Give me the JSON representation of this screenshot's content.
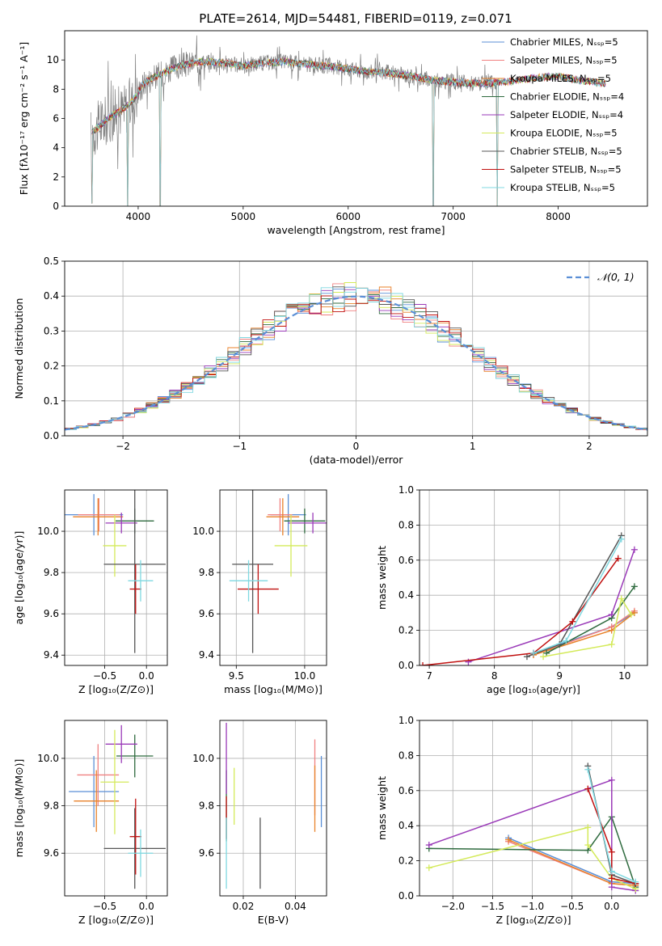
{
  "figure": {
    "title": "PLATE=2614, MJD=54481, FIBERID=0119, z=0.071",
    "colors": {
      "chabrier_miles": "#5b8fd6",
      "salpeter_miles": "#f08080",
      "kroupa_miles": "#e8822a",
      "chabrier_elodie": "#2f6b3f",
      "salpeter_elodie": "#9a3ab8",
      "kroupa_elodie": "#d4ea5a",
      "chabrier_stelib": "#555555",
      "salpeter_stelib": "#c0100f",
      "kroupa_stelib": "#7fd8e0",
      "data_spectrum": "#808080",
      "gaussian": "#5b8fd6"
    }
  },
  "chart_data": [
    {
      "id": "spectrum",
      "type": "line",
      "xlabel": "wavelength [Angstrom, rest frame]",
      "ylabel": "Flux [fλ10⁻¹⁷ erg cm⁻² s⁻¹ A⁻¹]",
      "xlim": [
        3300,
        8850
      ],
      "ylim": [
        0,
        12
      ],
      "xticks": [
        4000,
        5000,
        6000,
        7000,
        8000
      ],
      "yticks": [
        0,
        2,
        4,
        6,
        8,
        10
      ],
      "grid": false,
      "legend_position": "top-right",
      "legend": [
        "Chabrier MILES, Nₛₛₚ=5",
        "Salpeter MILES, Nₛₛₚ=5",
        "Kroupa MILES, Nₛₛₚ=5",
        "Chabrier ELODIE, Nₛₛₚ=4",
        "Salpeter ELODIE, Nₛₛₚ=4",
        "Kroupa ELODIE, Nₛₛₚ=5",
        "Chabrier STELIB, Nₛₛₚ=5",
        "Salpeter STELIB, Nₛₛₚ=5",
        "Kroupa STELIB, Nₛₛₚ=5"
      ],
      "continuum": [
        [
          3550,
          5.0
        ],
        [
          3650,
          5.6
        ],
        [
          3750,
          6.2
        ],
        [
          3850,
          6.6
        ],
        [
          3950,
          7.2
        ],
        [
          4050,
          8.4
        ],
        [
          4200,
          9.0
        ],
        [
          4400,
          9.6
        ],
        [
          4600,
          9.9
        ],
        [
          4800,
          9.8
        ],
        [
          5000,
          9.6
        ],
        [
          5200,
          9.8
        ],
        [
          5400,
          9.9
        ],
        [
          5600,
          9.7
        ],
        [
          5800,
          9.6
        ],
        [
          6000,
          9.4
        ],
        [
          6200,
          9.2
        ],
        [
          6400,
          9.1
        ],
        [
          6600,
          8.9
        ],
        [
          6800,
          8.6
        ],
        [
          7000,
          8.5
        ],
        [
          7200,
          8.4
        ],
        [
          7350,
          8.4
        ],
        [
          7500,
          8.5
        ],
        [
          7800,
          8.8
        ],
        [
          8000,
          8.9
        ],
        [
          8200,
          8.6
        ],
        [
          8450,
          8.4
        ]
      ],
      "dropouts": [
        [
          3560,
          0.2
        ],
        [
          3900,
          0.0
        ],
        [
          4210,
          0.0
        ],
        [
          6810,
          0.0
        ],
        [
          7420,
          0.0
        ]
      ]
    },
    {
      "id": "residuals",
      "type": "histogram",
      "xlabel": "(data-model)/error",
      "ylabel": "Normed distribution",
      "xlim": [
        -2.5,
        2.5
      ],
      "ylim": [
        0,
        0.5
      ],
      "xticks": [
        -2,
        -1,
        0,
        1,
        2
      ],
      "yticks": [
        0.0,
        0.1,
        0.2,
        0.3,
        0.4,
        0.5
      ],
      "grid": true,
      "legend_position": "top-right",
      "legend": [
        "𝒩(0, 1)"
      ],
      "bin_width": 0.1,
      "gaussian": {
        "mean": 0,
        "sigma": 1
      }
    },
    {
      "id": "age-vs-Z",
      "type": "scatter",
      "xlabel": "Z [log₁₀(Z/Z⊙)]",
      "ylabel": "age  [log₁₀(age/yr)]",
      "xlim": [
        -0.98,
        0.25
      ],
      "ylim": [
        9.35,
        10.2
      ],
      "xticks": [
        -0.5,
        0.0
      ],
      "xticklabels": [
        "−0.5",
        "0.0"
      ],
      "yticks": [
        9.4,
        9.6,
        9.8,
        10.0
      ],
      "grid": true,
      "points": [
        {
          "series": "chabrier_miles",
          "x": -0.63,
          "y": 10.08,
          "ex": 0.35,
          "ey": 0.1
        },
        {
          "series": "salpeter_miles",
          "x": -0.57,
          "y": 10.08,
          "ex": 0.25,
          "ey": 0.08
        },
        {
          "series": "kroupa_miles",
          "x": -0.58,
          "y": 10.07,
          "ex": 0.3,
          "ey": 0.09
        },
        {
          "series": "chabrier_elodie",
          "x": -0.14,
          "y": 10.05,
          "ex": 0.23,
          "ey": 0.06
        },
        {
          "series": "salpeter_elodie",
          "x": -0.3,
          "y": 10.04,
          "ex": 0.19,
          "ey": 0.05
        },
        {
          "series": "kroupa_elodie",
          "x": -0.38,
          "y": 9.93,
          "ex": 0.14,
          "ey": 0.15
        },
        {
          "series": "chabrier_stelib",
          "x": -0.14,
          "y": 9.84,
          "ex": 0.37,
          "ey": 0.43
        },
        {
          "series": "salpeter_stelib",
          "x": -0.13,
          "y": 9.72,
          "ex": 0.07,
          "ey": 0.12
        },
        {
          "series": "kroupa_stelib",
          "x": -0.07,
          "y": 9.76,
          "ex": 0.15,
          "ey": 0.1
        }
      ]
    },
    {
      "id": "age-vs-mass",
      "type": "scatter",
      "xlabel": "mass [log₁₀(M/M⊙)]",
      "ylabel": "",
      "xlim": [
        9.38,
        10.16
      ],
      "ylim": [
        9.35,
        10.2
      ],
      "xticks": [
        9.5,
        10.0
      ],
      "xticklabels": [
        "9.5",
        "10.0"
      ],
      "yticks": [
        9.4,
        9.6,
        9.8,
        10.0
      ],
      "grid": true,
      "points": [
        {
          "series": "chabrier_miles",
          "x": 9.88,
          "y": 10.08,
          "ex": 0.13,
          "ey": 0.1
        },
        {
          "series": "salpeter_miles",
          "x": 9.82,
          "y": 10.08,
          "ex": 0.09,
          "ey": 0.08
        },
        {
          "series": "kroupa_miles",
          "x": 9.84,
          "y": 10.07,
          "ex": 0.12,
          "ey": 0.09
        },
        {
          "series": "chabrier_elodie",
          "x": 10.0,
          "y": 10.05,
          "ex": 0.15,
          "ey": 0.06
        },
        {
          "series": "salpeter_elodie",
          "x": 10.06,
          "y": 10.04,
          "ex": 0.18,
          "ey": 0.05
        },
        {
          "series": "kroupa_elodie",
          "x": 9.9,
          "y": 9.93,
          "ex": 0.12,
          "ey": 0.15
        },
        {
          "series": "chabrier_stelib",
          "x": 9.62,
          "y": 9.84,
          "ex": 0.15,
          "ey": 0.43
        },
        {
          "series": "salpeter_stelib",
          "x": 9.66,
          "y": 9.72,
          "ex": 0.15,
          "ey": 0.12
        },
        {
          "series": "kroupa_stelib",
          "x": 9.59,
          "y": 9.76,
          "ex": 0.14,
          "ey": 0.1
        }
      ]
    },
    {
      "id": "weight-vs-age",
      "type": "line",
      "xlabel": "age  [log₁₀(age/yr)]",
      "ylabel": "mass weight",
      "xlim": [
        6.85,
        10.35
      ],
      "ylim": [
        0,
        1
      ],
      "xticks": [
        7,
        8,
        9,
        10
      ],
      "yticks": [
        0.0,
        0.2,
        0.4,
        0.6,
        0.8,
        1.0
      ],
      "grid": true,
      "series": [
        {
          "series": "chabrier_miles",
          "points": [
            [
              8.6,
              0.07
            ],
            [
              9.8,
              0.22
            ],
            [
              10.15,
              0.3
            ]
          ]
        },
        {
          "series": "salpeter_miles",
          "points": [
            [
              8.6,
              0.06
            ],
            [
              9.8,
              0.22
            ],
            [
              10.15,
              0.31
            ]
          ]
        },
        {
          "series": "kroupa_miles",
          "points": [
            [
              8.6,
              0.06
            ],
            [
              9.8,
              0.2
            ],
            [
              10.15,
              0.3
            ]
          ]
        },
        {
          "series": "chabrier_elodie",
          "points": [
            [
              8.8,
              0.07
            ],
            [
              9.8,
              0.27
            ],
            [
              10.15,
              0.45
            ]
          ]
        },
        {
          "series": "salpeter_elodie",
          "points": [
            [
              7.6,
              0.02
            ],
            [
              9.8,
              0.29
            ],
            [
              10.15,
              0.66
            ]
          ]
        },
        {
          "series": "kroupa_elodie",
          "points": [
            [
              8.75,
              0.05
            ],
            [
              9.8,
              0.12
            ],
            [
              9.95,
              0.38
            ],
            [
              10.1,
              0.29
            ]
          ]
        },
        {
          "series": "chabrier_stelib",
          "points": [
            [
              8.5,
              0.05
            ],
            [
              9.0,
              0.12
            ],
            [
              9.95,
              0.74
            ]
          ]
        },
        {
          "series": "salpeter_stelib",
          "points": [
            [
              6.9,
              0.0
            ],
            [
              8.6,
              0.07
            ],
            [
              9.2,
              0.25
            ],
            [
              9.9,
              0.61
            ]
          ]
        },
        {
          "series": "kroupa_stelib",
          "points": [
            [
              8.6,
              0.07
            ],
            [
              9.1,
              0.14
            ],
            [
              9.95,
              0.72
            ]
          ]
        }
      ]
    },
    {
      "id": "mass-vs-Z",
      "type": "scatter",
      "xlabel": "Z [log₁₀(Z/Z⊙)]",
      "ylabel": "mass [log₁₀(M/M⊙)]",
      "xlim": [
        -0.98,
        0.25
      ],
      "ylim": [
        9.42,
        10.16
      ],
      "xticks": [
        -0.5,
        0.0
      ],
      "xticklabels": [
        "−0.5",
        "0.0"
      ],
      "yticks": [
        9.6,
        9.8,
        10.0
      ],
      "grid": true,
      "points": [
        {
          "series": "chabrier_miles",
          "x": -0.63,
          "y": 9.86,
          "ex": 0.3,
          "ey": 0.15
        },
        {
          "series": "salpeter_miles",
          "x": -0.58,
          "y": 9.93,
          "ex": 0.25,
          "ey": 0.13
        },
        {
          "series": "kroupa_miles",
          "x": -0.6,
          "y": 9.82,
          "ex": 0.27,
          "ey": 0.13
        },
        {
          "series": "chabrier_elodie",
          "x": -0.14,
          "y": 10.01,
          "ex": 0.22,
          "ey": 0.09
        },
        {
          "series": "salpeter_elodie",
          "x": -0.3,
          "y": 10.06,
          "ex": 0.19,
          "ey": 0.08
        },
        {
          "series": "kroupa_elodie",
          "x": -0.38,
          "y": 9.9,
          "ex": 0.17,
          "ey": 0.22
        },
        {
          "series": "chabrier_stelib",
          "x": -0.14,
          "y": 9.62,
          "ex": 0.37,
          "ey": 0.17
        },
        {
          "series": "salpeter_stelib",
          "x": -0.13,
          "y": 9.67,
          "ex": 0.07,
          "ey": 0.16
        },
        {
          "series": "kroupa_stelib",
          "x": -0.07,
          "y": 9.6,
          "ex": 0.15,
          "ey": 0.1
        }
      ]
    },
    {
      "id": "ebv",
      "type": "errorbar",
      "xlabel": "E(B-V)",
      "ylabel": "",
      "xlim": [
        0.011,
        0.052
      ],
      "ylim": [
        9.42,
        10.16
      ],
      "xticks": [
        0.02,
        0.04
      ],
      "xticklabels": [
        "0.02",
        "0.04"
      ],
      "yticks": [
        9.6,
        9.8,
        10.0
      ],
      "grid": true,
      "points": [
        {
          "series": "chabrier_miles",
          "x": 0.05,
          "y": 9.86,
          "ey": 0.15
        },
        {
          "series": "salpeter_miles",
          "x": 0.0475,
          "y": 9.92,
          "ey": 0.16
        },
        {
          "series": "kroupa_miles",
          "x": 0.0475,
          "y": 9.83,
          "ey": 0.14
        },
        {
          "series": "chabrier_elodie",
          "x": 0.0135,
          "y": 9.8,
          "ey": 0.15
        },
        {
          "series": "salpeter_elodie",
          "x": 0.0135,
          "y": 10.0,
          "ey": 0.15
        },
        {
          "series": "kroupa_elodie",
          "x": 0.0165,
          "y": 9.84,
          "ey": 0.12
        },
        {
          "series": "chabrier_stelib",
          "x": 0.0265,
          "y": 9.6,
          "ey": 0.15
        },
        {
          "series": "salpeter_stelib",
          "x": 0.0135,
          "y": 9.75,
          "ey": 0.09
        },
        {
          "series": "kroupa_stelib",
          "x": 0.0135,
          "y": 9.6,
          "ey": 0.15
        }
      ]
    },
    {
      "id": "weight-vs-Z",
      "type": "line",
      "xlabel": "Z [log₁₀(Z/Z⊙)]",
      "ylabel": "mass weight",
      "xlim": [
        -2.42,
        0.45
      ],
      "ylim": [
        0,
        1
      ],
      "xticks": [
        -2.0,
        -1.5,
        -1.0,
        -0.5,
        0.0
      ],
      "xticklabels": [
        "−2.0",
        "−1.5",
        "−1.0",
        "−0.5",
        "0.0"
      ],
      "yticks": [
        0.0,
        0.2,
        0.4,
        0.6,
        0.8,
        1.0
      ],
      "grid": true,
      "series": [
        {
          "series": "chabrier_miles",
          "points": [
            [
              -1.3,
              0.33
            ],
            [
              0.0,
              0.08
            ],
            [
              0.3,
              0.07
            ]
          ]
        },
        {
          "series": "salpeter_miles",
          "points": [
            [
              -1.3,
              0.31
            ],
            [
              0.0,
              0.07
            ],
            [
              0.3,
              0.06
            ]
          ]
        },
        {
          "series": "kroupa_miles",
          "points": [
            [
              -1.3,
              0.32
            ],
            [
              0.0,
              0.07
            ],
            [
              0.3,
              0.06
            ]
          ]
        },
        {
          "series": "chabrier_elodie",
          "points": [
            [
              -2.3,
              0.27
            ],
            [
              -0.3,
              0.26
            ],
            [
              0.0,
              0.45
            ],
            [
              0.3,
              0.05
            ]
          ]
        },
        {
          "series": "salpeter_elodie",
          "points": [
            [
              -2.3,
              0.29
            ],
            [
              0.0,
              0.66
            ],
            [
              0.0,
              0.05
            ],
            [
              0.3,
              0.03
            ]
          ]
        },
        {
          "series": "kroupa_elodie",
          "points": [
            [
              -2.3,
              0.16
            ],
            [
              -0.3,
              0.39
            ],
            [
              -0.3,
              0.29
            ],
            [
              0.0,
              0.1
            ],
            [
              0.3,
              0.04
            ]
          ]
        },
        {
          "series": "chabrier_stelib",
          "points": [
            [
              -0.3,
              0.74
            ],
            [
              0.0,
              0.12
            ],
            [
              0.3,
              0.07
            ]
          ]
        },
        {
          "series": "salpeter_stelib",
          "points": [
            [
              -0.3,
              0.61
            ],
            [
              0.0,
              0.25
            ],
            [
              0.0,
              0.1
            ],
            [
              0.3,
              0.07
            ]
          ]
        },
        {
          "series": "kroupa_stelib",
          "points": [
            [
              -0.3,
              0.72
            ],
            [
              0.0,
              0.14
            ],
            [
              0.3,
              0.08
            ]
          ]
        }
      ]
    }
  ]
}
